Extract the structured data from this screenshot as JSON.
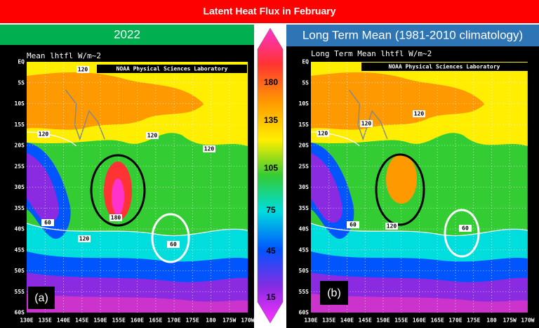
{
  "header": {
    "title": "Latent Heat Flux in February"
  },
  "panels": [
    {
      "heading": "2022",
      "map_title": "Mean lhtfl W/m~2",
      "credit": "NOAA Physical Sciences Laboratory",
      "label": "(a)",
      "contour_labels": [
        120,
        120,
        120,
        120,
        60,
        180,
        120,
        60
      ]
    },
    {
      "heading": "Long Term Mean (1981-2010 climatology)",
      "map_title": "Long Term Mean lhtfl W/m~2",
      "credit": "NOAA Physical Sciences Laboratory",
      "label": "(b)",
      "contour_labels": [
        120,
        120,
        120,
        60,
        120,
        60
      ]
    }
  ],
  "lat_labels": [
    "EQ",
    "5S",
    "10S",
    "15S",
    "20S",
    "25S",
    "30S",
    "35S",
    "40S",
    "45S",
    "50S",
    "55S",
    "60S"
  ],
  "lon_labels": [
    "130E",
    "135E",
    "140E",
    "145E",
    "150E",
    "155E",
    "160E",
    "165E",
    "170E",
    "175E",
    "180",
    "175W",
    "170W"
  ],
  "colorbar": {
    "ticks": [
      180,
      135,
      105,
      75,
      45,
      15
    ]
  }
}
